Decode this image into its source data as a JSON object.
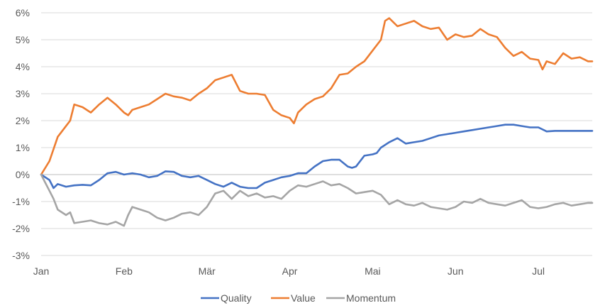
{
  "chart_data": {
    "type": "line",
    "title": "",
    "xlabel": "",
    "ylabel": "",
    "ylim": [
      -3,
      6
    ],
    "y_ticks": [
      -3,
      -2,
      -1,
      0,
      1,
      2,
      3,
      4,
      5,
      6
    ],
    "y_tick_labels": [
      "-3%",
      "-2%",
      "-1%",
      "0%",
      "1%",
      "2%",
      "3%",
      "4%",
      "5%",
      "6%"
    ],
    "x_range": [
      0,
      6.65
    ],
    "x_ticks": [
      0,
      1,
      2,
      3,
      4,
      5,
      6
    ],
    "x_tick_labels": [
      "Jan",
      "Feb",
      "Mär",
      "Apr",
      "Mai",
      "Jun",
      "Jul"
    ],
    "grid": true,
    "legend_position": "bottom",
    "series": [
      {
        "name": "Quality",
        "color": "#4472C4",
        "x": [
          0,
          0.1,
          0.15,
          0.2,
          0.3,
          0.4,
          0.5,
          0.6,
          0.7,
          0.8,
          0.9,
          1.0,
          1.1,
          1.2,
          1.3,
          1.4,
          1.5,
          1.6,
          1.7,
          1.8,
          1.9,
          2.0,
          2.1,
          2.2,
          2.3,
          2.4,
          2.5,
          2.6,
          2.7,
          2.8,
          2.9,
          3.0,
          3.1,
          3.2,
          3.3,
          3.4,
          3.5,
          3.6,
          3.7,
          3.75,
          3.8,
          3.9,
          4.0,
          4.05,
          4.1,
          4.2,
          4.3,
          4.4,
          4.5,
          4.6,
          4.7,
          4.8,
          4.9,
          5.0,
          5.1,
          5.2,
          5.3,
          5.4,
          5.5,
          5.6,
          5.7,
          5.8,
          5.9,
          6.0,
          6.1,
          6.2,
          6.3,
          6.4,
          6.5,
          6.6,
          6.65
        ],
        "values": [
          0,
          -0.2,
          -0.5,
          -0.35,
          -0.45,
          -0.4,
          -0.38,
          -0.4,
          -0.2,
          0.05,
          0.1,
          0.0,
          0.05,
          0.0,
          -0.1,
          -0.05,
          0.12,
          0.1,
          -0.05,
          -0.1,
          -0.05,
          -0.2,
          -0.35,
          -0.45,
          -0.3,
          -0.45,
          -0.5,
          -0.5,
          -0.3,
          -0.2,
          -0.1,
          -0.05,
          0.05,
          0.05,
          0.3,
          0.5,
          0.55,
          0.55,
          0.3,
          0.25,
          0.3,
          0.7,
          0.75,
          0.8,
          1.0,
          1.2,
          1.35,
          1.15,
          1.2,
          1.25,
          1.35,
          1.45,
          1.5,
          1.55,
          1.6,
          1.65,
          1.7,
          1.75,
          1.8,
          1.85,
          1.85,
          1.8,
          1.75,
          1.75,
          1.6,
          1.62,
          1.62,
          1.62,
          1.62,
          1.62,
          1.62
        ]
      },
      {
        "name": "Value",
        "color": "#ED7D31",
        "x": [
          0,
          0.1,
          0.2,
          0.3,
          0.35,
          0.4,
          0.5,
          0.6,
          0.7,
          0.8,
          0.9,
          1.0,
          1.05,
          1.1,
          1.2,
          1.3,
          1.4,
          1.5,
          1.6,
          1.7,
          1.8,
          1.9,
          2.0,
          2.1,
          2.2,
          2.3,
          2.4,
          2.5,
          2.6,
          2.7,
          2.8,
          2.9,
          3.0,
          3.05,
          3.1,
          3.2,
          3.3,
          3.4,
          3.5,
          3.6,
          3.7,
          3.8,
          3.9,
          4.0,
          4.1,
          4.15,
          4.2,
          4.3,
          4.4,
          4.5,
          4.6,
          4.7,
          4.8,
          4.9,
          5.0,
          5.1,
          5.2,
          5.3,
          5.4,
          5.5,
          5.6,
          5.7,
          5.8,
          5.9,
          6.0,
          6.05,
          6.1,
          6.2,
          6.3,
          6.4,
          6.5,
          6.6,
          6.65
        ],
        "values": [
          0,
          0.5,
          1.4,
          1.8,
          2.0,
          2.6,
          2.5,
          2.3,
          2.6,
          2.85,
          2.6,
          2.3,
          2.2,
          2.4,
          2.5,
          2.6,
          2.8,
          3.0,
          2.9,
          2.85,
          2.75,
          3.0,
          3.2,
          3.5,
          3.6,
          3.7,
          3.1,
          3.0,
          3.0,
          2.95,
          2.4,
          2.2,
          2.1,
          1.9,
          2.3,
          2.6,
          2.8,
          2.9,
          3.2,
          3.7,
          3.75,
          4.0,
          4.2,
          4.6,
          5.0,
          5.7,
          5.8,
          5.5,
          5.6,
          5.7,
          5.5,
          5.4,
          5.45,
          5.0,
          5.2,
          5.1,
          5.15,
          5.4,
          5.2,
          5.1,
          4.7,
          4.4,
          4.55,
          4.3,
          4.25,
          3.9,
          4.2,
          4.1,
          4.5,
          4.3,
          4.35,
          4.2,
          4.2
        ]
      },
      {
        "name": "Momentum",
        "color": "#A5A5A5",
        "x": [
          0,
          0.05,
          0.1,
          0.15,
          0.2,
          0.3,
          0.35,
          0.4,
          0.5,
          0.6,
          0.7,
          0.8,
          0.9,
          1.0,
          1.05,
          1.1,
          1.2,
          1.3,
          1.4,
          1.5,
          1.6,
          1.7,
          1.8,
          1.9,
          2.0,
          2.1,
          2.2,
          2.3,
          2.4,
          2.5,
          2.6,
          2.7,
          2.8,
          2.9,
          3.0,
          3.1,
          3.2,
          3.3,
          3.4,
          3.5,
          3.6,
          3.7,
          3.8,
          3.9,
          4.0,
          4.1,
          4.2,
          4.3,
          4.4,
          4.5,
          4.6,
          4.7,
          4.8,
          4.9,
          5.0,
          5.1,
          5.2,
          5.3,
          5.4,
          5.5,
          5.6,
          5.7,
          5.8,
          5.9,
          6.0,
          6.1,
          6.2,
          6.3,
          6.4,
          6.5,
          6.6,
          6.65
        ],
        "values": [
          0,
          -0.3,
          -0.6,
          -0.9,
          -1.3,
          -1.5,
          -1.4,
          -1.8,
          -1.75,
          -1.7,
          -1.8,
          -1.85,
          -1.75,
          -1.9,
          -1.5,
          -1.2,
          -1.3,
          -1.4,
          -1.6,
          -1.7,
          -1.6,
          -1.45,
          -1.4,
          -1.5,
          -1.2,
          -0.7,
          -0.6,
          -0.9,
          -0.6,
          -0.8,
          -0.7,
          -0.85,
          -0.8,
          -0.9,
          -0.6,
          -0.4,
          -0.45,
          -0.35,
          -0.25,
          -0.4,
          -0.35,
          -0.5,
          -0.7,
          -0.65,
          -0.6,
          -0.75,
          -1.1,
          -0.95,
          -1.1,
          -1.15,
          -1.05,
          -1.2,
          -1.25,
          -1.3,
          -1.2,
          -1.0,
          -1.05,
          -0.9,
          -1.05,
          -1.1,
          -1.15,
          -1.05,
          -0.95,
          -1.2,
          -1.25,
          -1.2,
          -1.1,
          -1.05,
          -1.15,
          -1.1,
          -1.05,
          -1.05
        ]
      }
    ]
  }
}
